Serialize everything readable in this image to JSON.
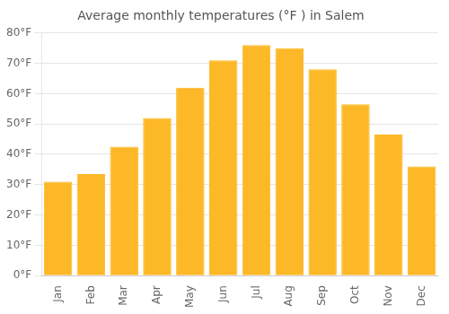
{
  "chart_data": {
    "type": "bar",
    "title": "Average monthly temperatures (°F ) in Salem",
    "categories": [
      "Jan",
      "Feb",
      "Mar",
      "Apr",
      "May",
      "Jun",
      "Jul",
      "Aug",
      "Sep",
      "Oct",
      "Nov",
      "Dec"
    ],
    "values": [
      31,
      33.5,
      42.5,
      52,
      62,
      71,
      76,
      75,
      68,
      56.5,
      46.5,
      36
    ],
    "color": "#FDB827",
    "ylim": [
      0,
      80
    ],
    "yticks": [
      {
        "value": 0,
        "label": "0°F"
      },
      {
        "value": 10,
        "label": "10°F"
      },
      {
        "value": 20,
        "label": "20°F"
      },
      {
        "value": 30,
        "label": "30°F"
      },
      {
        "value": 40,
        "label": "40°F"
      },
      {
        "value": 50,
        "label": "50°F"
      },
      {
        "value": 60,
        "label": "60°F"
      },
      {
        "value": 70,
        "label": "70°F"
      },
      {
        "value": 80,
        "label": "80°F"
      }
    ],
    "grid": true
  }
}
